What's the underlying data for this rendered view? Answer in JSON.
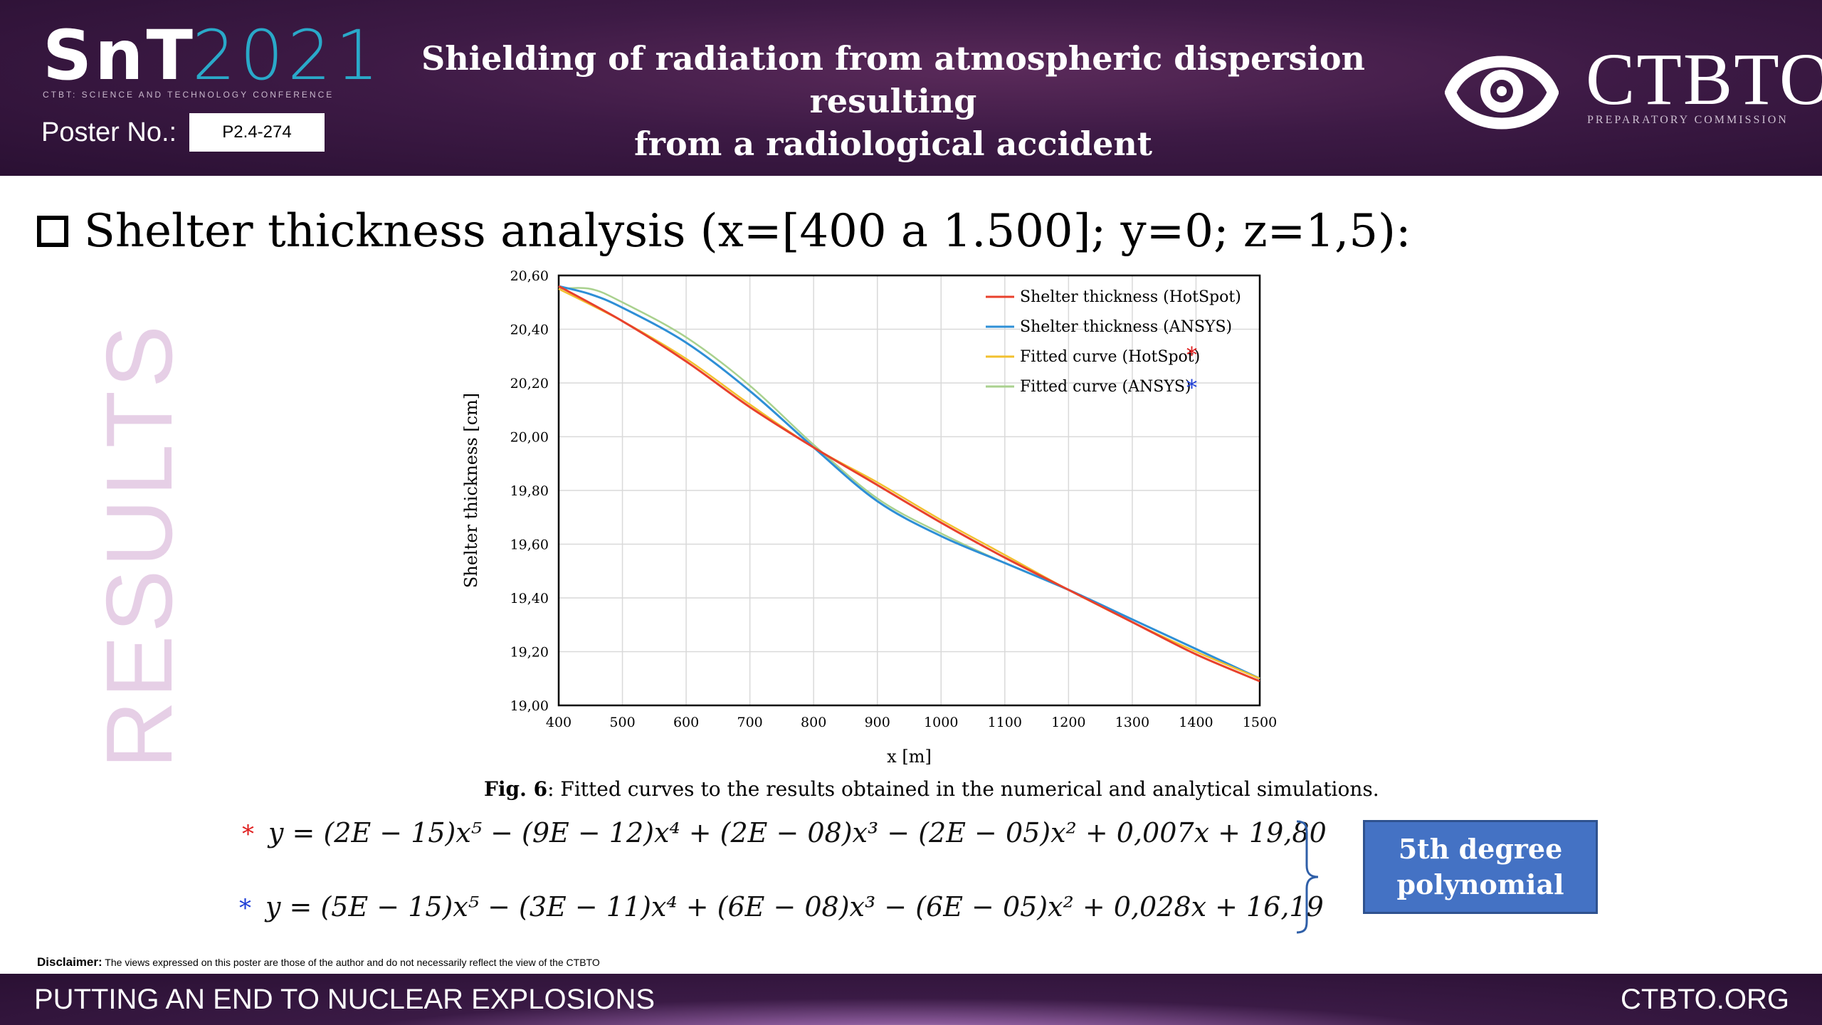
{
  "header": {
    "logo_main": "SnT",
    "logo_year": "2021",
    "logo_subtitle": "CTBT: SCIENCE AND TECHNOLOGY CONFERENCE",
    "poster_label": "Poster No.:",
    "poster_number": "P2.4-274",
    "title_line1": "Shielding of radiation from atmospheric dispersion resulting",
    "title_line2": "from a radiological accident",
    "org_name": "CTBTO",
    "org_subtitle": "PREPARATORY COMMISSION"
  },
  "side_label": "RESULTS",
  "section_title": "Shelter thickness analysis (x=[400 a 1.500]; y=0; z=1,5):",
  "chart_data": {
    "type": "line",
    "xlabel": "x [m]",
    "ylabel": "Shelter thickness [cm]",
    "xlim": [
      400,
      1500
    ],
    "ylim": [
      19.0,
      20.6
    ],
    "x_ticks": [
      400,
      500,
      600,
      700,
      800,
      900,
      1000,
      1100,
      1200,
      1300,
      1400,
      1500
    ],
    "y_ticks": [
      "19,00",
      "19,20",
      "19,40",
      "19,60",
      "19,80",
      "20,00",
      "20,20",
      "20,40",
      "20,60"
    ],
    "grid": true,
    "legend_position": "top-right",
    "series": [
      {
        "name": "Shelter thickness (HotSpot)",
        "color": "#e8412c",
        "marker": "",
        "x": [
          400,
          500,
          600,
          700,
          800,
          900,
          1000,
          1100,
          1200,
          1300,
          1400,
          1500
        ],
        "y": [
          20.56,
          20.43,
          20.28,
          20.11,
          19.96,
          19.82,
          19.68,
          19.55,
          19.43,
          19.31,
          19.19,
          19.09
        ]
      },
      {
        "name": "Shelter thickness (ANSYS)",
        "color": "#2e8fd6",
        "marker": "",
        "x": [
          400,
          450,
          500,
          600,
          700,
          800,
          900,
          1000,
          1100,
          1200,
          1300,
          1400,
          1500
        ],
        "y": [
          20.56,
          20.53,
          20.48,
          20.35,
          20.17,
          19.96,
          19.76,
          19.63,
          19.53,
          19.43,
          19.32,
          19.21,
          19.1
        ]
      },
      {
        "name": "Fitted curve (HotSpot)",
        "color": "#f2c02e",
        "marker": "*",
        "marker_color": "#e02020",
        "x": [
          400,
          500,
          600,
          700,
          800,
          900,
          1000,
          1100,
          1200,
          1300,
          1400,
          1500
        ],
        "y": [
          20.55,
          20.43,
          20.29,
          20.12,
          19.96,
          19.83,
          19.69,
          19.56,
          19.43,
          19.31,
          19.2,
          19.1
        ]
      },
      {
        "name": "Fitted curve (ANSYS)",
        "color": "#a9d18e",
        "marker": "*",
        "marker_color": "#1f3fd6",
        "x": [
          400,
          450,
          500,
          600,
          700,
          800,
          900,
          1000,
          1100,
          1200,
          1300,
          1400,
          1500
        ],
        "y": [
          20.55,
          20.55,
          20.5,
          20.37,
          20.19,
          19.97,
          19.77,
          19.64,
          19.53,
          19.43,
          19.32,
          19.21,
          19.1
        ]
      }
    ]
  },
  "caption": {
    "label": "Fig. 6",
    "text": ": Fitted curves to the results obtained in the numerical and analytical simulations."
  },
  "equations": {
    "hotspot_marker": "*",
    "hotspot": "y = (2E − 15)x⁵ − (9E − 12)x⁴ + (2E − 08)x³ − (2E − 05)x² + 0,007x + 19,80",
    "ansys_marker": "*",
    "ansys": "y = (5E − 15)x⁵ − (3E − 11)x⁴ + (6E − 08)x³ − (6E − 05)x² + 0,028x + 16,19"
  },
  "polynomial_box": {
    "line1": "5th degree",
    "line2": "polynomial"
  },
  "disclaimer": {
    "label": "Disclaimer:",
    "text": " The views expressed on this poster are those of the author and do not necessarily reflect the view of the CTBTO"
  },
  "footer": {
    "left": "PUTTING AN END TO NUCLEAR EXPLOSIONS",
    "right": "CTBTO.ORG"
  },
  "colors": {
    "header_bg": "#3d1a45",
    "accent_teal": "#2aa9c9",
    "box_blue": "#4472c4",
    "side_label": "#e6cfe6"
  }
}
